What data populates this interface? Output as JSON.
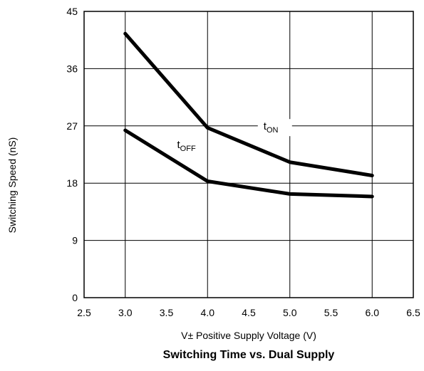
{
  "chart_data": {
    "type": "line",
    "title": "Switching Time vs. Dual Supply",
    "xlabel": "V± Positive Supply Voltage (V)",
    "ylabel": "Switching Speed (nS)",
    "xlim": [
      2.5,
      6.5
    ],
    "ylim": [
      0,
      45
    ],
    "xticks": [
      "2.5",
      "3.0",
      "3.5",
      "4.0",
      "4.5",
      "5.0",
      "5.5",
      "6.0",
      "6.5"
    ],
    "yticks": [
      "0",
      "9",
      "18",
      "27",
      "36",
      "45"
    ],
    "grid": true,
    "series": [
      {
        "name": "tON",
        "label_main": "t",
        "label_sub": "ON",
        "x": [
          3.0,
          4.0,
          5.0,
          6.0
        ],
        "values": [
          41.5,
          26.7,
          21.3,
          19.2
        ]
      },
      {
        "name": "tOFF",
        "label_main": "t",
        "label_sub": "OFF",
        "x": [
          3.0,
          4.0,
          5.0,
          6.0
        ],
        "values": [
          26.3,
          18.3,
          16.3,
          15.9
        ]
      }
    ]
  }
}
